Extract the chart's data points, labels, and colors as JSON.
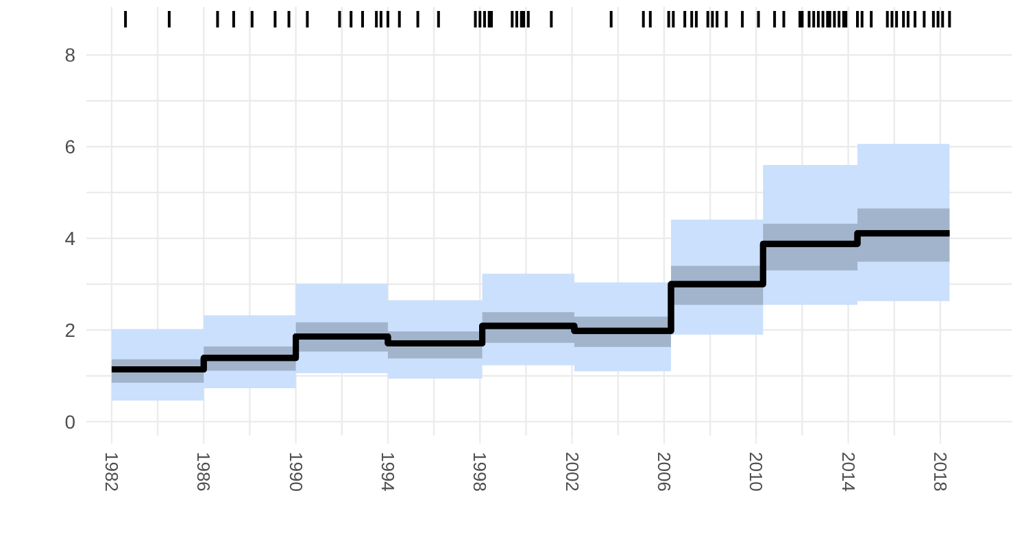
{
  "chart_data": {
    "type": "step",
    "x": [
      1982,
      1986,
      1990,
      1994,
      1998.1,
      2002.1,
      2006.3,
      2010.3,
      2014.4,
      2018.4
    ],
    "series": [
      {
        "color": "#000000",
        "values": [
          1.14,
          1.39,
          1.86,
          1.71,
          2.09,
          1.98,
          3.0,
          3.88,
          4.11,
          4.11
        ],
        "lower": [
          0.46,
          0.73,
          1.06,
          0.94,
          1.23,
          1.1,
          1.9,
          2.55,
          2.63,
          2.63
        ],
        "upper": [
          2.02,
          2.32,
          3.01,
          2.65,
          3.23,
          3.04,
          4.41,
          5.6,
          6.06,
          6.06
        ]
      },
      {
        "color": "#000000",
        "values": [
          1.14,
          1.39,
          1.86,
          1.71,
          2.09,
          1.98,
          3.0,
          3.88,
          4.11,
          4.11
        ],
        "lower": [
          0.85,
          1.11,
          1.53,
          1.38,
          1.72,
          1.63,
          2.55,
          3.3,
          3.49,
          3.49
        ],
        "upper": [
          1.36,
          1.64,
          2.17,
          1.97,
          2.39,
          2.29,
          3.4,
          4.32,
          4.65,
          4.65
        ]
      },
      {
        "type": "bar",
        "color": "#000000",
        "base": [
          8.6,
          8.6,
          8.6,
          8.6,
          8.6,
          8.6,
          8.6,
          8.6,
          8.6,
          8.6,
          8.6,
          8.6,
          8.6,
          8.6,
          8.6,
          8.6,
          8.6,
          8.6,
          8.6,
          8.6,
          8.6,
          8.6,
          8.6,
          8.6,
          8.6,
          8.6,
          8.6,
          8.6,
          8.6,
          8.6,
          8.6,
          8.6,
          8.6,
          8.6,
          8.6,
          8.6,
          8.6,
          8.6,
          8.6,
          8.6,
          8.6,
          8.6,
          8.6,
          8.6,
          8.6,
          8.6,
          8.6,
          8.6,
          8.6,
          8.6,
          8.6,
          8.6,
          8.6,
          8.6,
          8.6,
          8.6,
          8.6,
          8.6,
          8.6,
          8.6,
          8.6,
          8.6,
          8.6,
          8.6,
          8.6,
          8.6,
          8.6,
          8.6,
          8.6,
          8.6
        ],
        "x": [
          1982.6,
          1984.5,
          1986.6,
          1987.3,
          1988.1,
          1989.1,
          1989.7,
          1990.5,
          1991.9,
          1992.4,
          1992.9,
          1993.5,
          1993.7,
          1994.0,
          1994.5,
          1995.3,
          1996.2,
          1997.8,
          1998.0,
          1998.2,
          1998.4,
          1998.5,
          1999.4,
          1999.6,
          1999.8,
          1999.9,
          2000.1,
          2001.1,
          2003.7,
          2005.1,
          2005.4,
          2006.2,
          2006.4,
          2006.9,
          2007.2,
          2007.4,
          2007.9,
          2008.1,
          2008.3,
          2008.7,
          2009.4,
          2010.1,
          2010.8,
          2011.2,
          2011.9,
          2012.0,
          2012.3,
          2012.5,
          2012.7,
          2012.9,
          2013.1,
          2013.2,
          2013.4,
          2013.6,
          2013.8,
          2013.9,
          2014.4,
          2014.6,
          2015.0,
          2015.7,
          2015.9,
          2016.1,
          2016.4,
          2016.6,
          2016.9,
          2017.3,
          2017.7,
          2017.9,
          2018.1,
          2018.4
        ],
        "values": [
          0.36,
          0.36,
          0.36,
          0.36,
          0.36,
          0.36,
          0.36,
          0.36,
          0.36,
          0.36,
          0.36,
          0.36,
          0.36,
          0.36,
          0.36,
          0.36,
          0.36,
          0.36,
          0.36,
          0.36,
          0.36,
          0.36,
          0.36,
          0.36,
          0.36,
          0.36,
          0.36,
          0.36,
          0.36,
          0.36,
          0.36,
          0.36,
          0.36,
          0.36,
          0.36,
          0.36,
          0.36,
          0.36,
          0.36,
          0.36,
          0.36,
          0.36,
          0.36,
          0.36,
          0.36,
          0.36,
          0.36,
          0.36,
          0.36,
          0.36,
          0.36,
          0.36,
          0.36,
          0.36,
          0.36,
          0.36,
          0.36,
          0.36,
          0.36,
          0.36,
          0.36,
          0.36,
          0.36,
          0.36,
          0.36,
          0.36,
          0.36,
          0.36,
          0.36,
          0.36
        ]
      }
    ],
    "xlim": [
      1980.9,
      2021.1
    ],
    "xticks": [
      1982,
      1986,
      1990,
      1994,
      1998,
      2002,
      2006,
      2010,
      2014,
      2018
    ],
    "ylim": [
      -0.3,
      9.05
    ],
    "yticks": [
      0,
      2,
      4,
      6,
      8
    ],
    "grid": true,
    "line_style": "solid",
    "legend": false
  }
}
